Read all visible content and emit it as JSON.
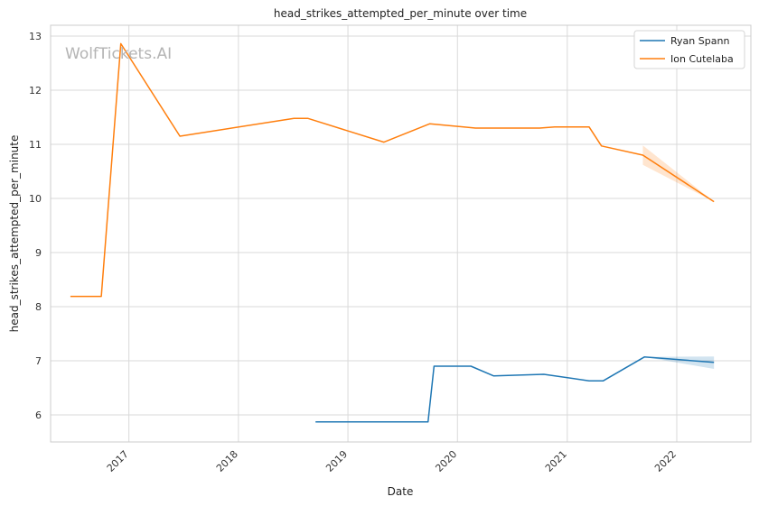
{
  "chart_data": {
    "type": "line",
    "title": "head_strikes_attempted_per_minute over time",
    "xlabel": "Date",
    "ylabel": "head_strikes_attempted_per_minute",
    "x_tick_labels": [
      "2017",
      "2018",
      "2019",
      "2020",
      "2021",
      "2022"
    ],
    "y_ticks": [
      6,
      7,
      8,
      9,
      10,
      11,
      12,
      13
    ],
    "xlim": [
      "2016-04-15",
      "2022-09-05"
    ],
    "ylim": [
      5.5,
      13.2
    ],
    "grid": true,
    "legend_position": "top-right",
    "watermark": "WolfTickets.AI",
    "series": [
      {
        "name": "Ryan Spann",
        "color": "#1f77b4",
        "points": [
          {
            "x": "2018-09-15",
            "y": 5.87
          },
          {
            "x": "2019-09-25",
            "y": 5.87
          },
          {
            "x": "2019-10-15",
            "y": 6.9
          },
          {
            "x": "2020-02-15",
            "y": 6.9
          },
          {
            "x": "2020-05-01",
            "y": 6.72
          },
          {
            "x": "2020-10-15",
            "y": 6.75
          },
          {
            "x": "2021-03-15",
            "y": 6.63
          },
          {
            "x": "2021-05-01",
            "y": 6.63
          },
          {
            "x": "2021-09-15",
            "y": 7.07
          },
          {
            "x": "2022-05-05",
            "y": 6.97
          }
        ],
        "band": [
          {
            "x": "2021-09-15",
            "low": 7.07,
            "high": 7.07
          },
          {
            "x": "2022-05-05",
            "low": 6.85,
            "high": 7.08
          }
        ]
      },
      {
        "name": "Ion Cutelaba",
        "color": "#ff7f0e",
        "points": [
          {
            "x": "2016-06-20",
            "y": 8.19
          },
          {
            "x": "2016-10-01",
            "y": 8.19
          },
          {
            "x": "2016-12-05",
            "y": 12.86
          },
          {
            "x": "2017-06-20",
            "y": 11.15
          },
          {
            "x": "2018-07-05",
            "y": 11.48
          },
          {
            "x": "2018-08-20",
            "y": 11.48
          },
          {
            "x": "2019-05-01",
            "y": 11.04
          },
          {
            "x": "2019-10-01",
            "y": 11.38
          },
          {
            "x": "2020-03-01",
            "y": 11.3
          },
          {
            "x": "2020-10-01",
            "y": 11.3
          },
          {
            "x": "2020-11-20",
            "y": 11.32
          },
          {
            "x": "2021-03-15",
            "y": 11.32
          },
          {
            "x": "2021-04-25",
            "y": 10.97
          },
          {
            "x": "2021-09-10",
            "y": 10.8
          },
          {
            "x": "2022-05-05",
            "y": 9.94
          }
        ],
        "band": [
          {
            "x": "2021-09-10",
            "low": 10.62,
            "high": 10.98
          },
          {
            "x": "2022-05-05",
            "low": 9.94,
            "high": 9.94
          }
        ]
      }
    ]
  }
}
